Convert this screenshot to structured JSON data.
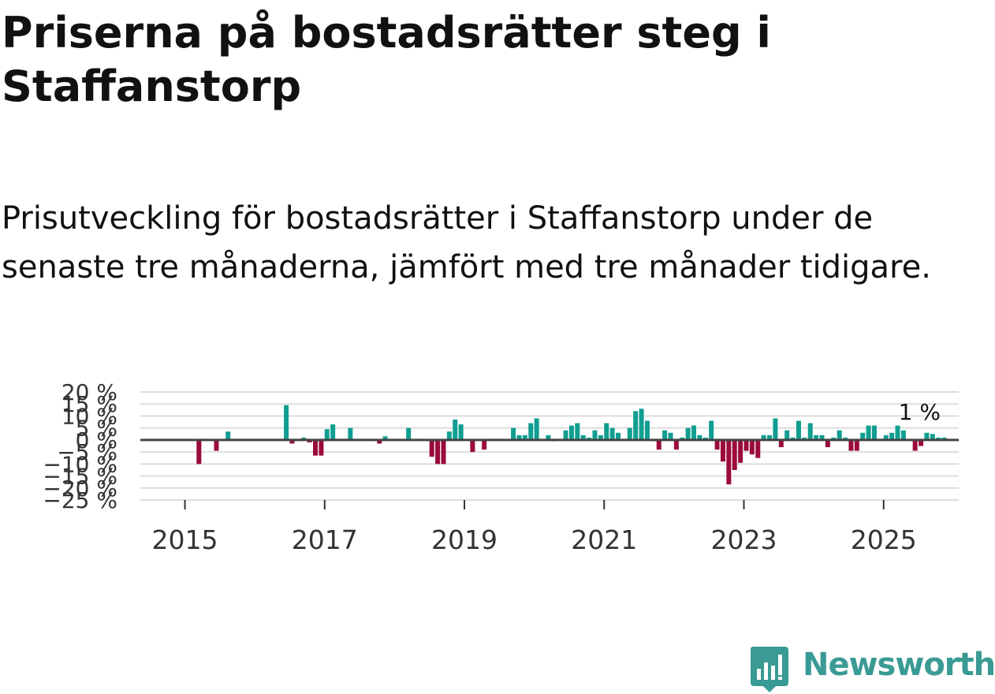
{
  "title": "Priserna på bostadsrätter steg i Staffanstorp",
  "subtitle": "Prisutveckling för bostadsrätter i Staffanstorp under de senaste tre månaderna, jämfört med tre månader tidigare.",
  "brand": {
    "name": "Newsworthy",
    "color": "#3a9a94"
  },
  "colors": {
    "positive": "#0f9e91",
    "negative": "#9b0a3c",
    "zero_line": "#444444",
    "grid": "#dddddd"
  },
  "chart_data": {
    "type": "bar",
    "title": "",
    "xlabel": "",
    "ylabel": "",
    "ylim": [
      -25,
      20
    ],
    "yticks": [
      20,
      15,
      10,
      5,
      0,
      -5,
      -10,
      -15,
      -20,
      -25
    ],
    "ytick_labels": [
      "20 %",
      "15 %",
      "10 %",
      "5 %",
      "0 %",
      "−5 %",
      "−10 %",
      "−15 %",
      "−20 %",
      "−25 %"
    ],
    "xticks": [
      "2015",
      "2017",
      "2019",
      "2021",
      "2023",
      "2025"
    ],
    "x_start": "2014-09",
    "end_label": "1 %",
    "series": [
      {
        "name": "Prisutveckling",
        "x": [
          "2015-03",
          "2015-06",
          "2015-08",
          "2016-06",
          "2016-07",
          "2016-09",
          "2016-10",
          "2016-11",
          "2016-12",
          "2017-01",
          "2017-02",
          "2017-05",
          "2017-10",
          "2017-11",
          "2018-03",
          "2018-07",
          "2018-08",
          "2018-09",
          "2018-10",
          "2018-11",
          "2018-12",
          "2019-02",
          "2019-04",
          "2019-09",
          "2019-10",
          "2019-11",
          "2019-12",
          "2020-01",
          "2020-03",
          "2020-04",
          "2020-06",
          "2020-07",
          "2020-08",
          "2020-09",
          "2020-10",
          "2020-11",
          "2020-12",
          "2021-01",
          "2021-02",
          "2021-03",
          "2021-05",
          "2021-06",
          "2021-07",
          "2021-08",
          "2021-09",
          "2021-10",
          "2021-11",
          "2021-12",
          "2022-01",
          "2022-02",
          "2022-03",
          "2022-04",
          "2022-05",
          "2022-06",
          "2022-07",
          "2022-08",
          "2022-09",
          "2022-10",
          "2022-11",
          "2022-12",
          "2023-01",
          "2023-02",
          "2023-03",
          "2023-04",
          "2023-05",
          "2023-06",
          "2023-07",
          "2023-08",
          "2023-09",
          "2023-10",
          "2023-11",
          "2023-12",
          "2024-01",
          "2024-02",
          "2024-03",
          "2024-04",
          "2024-05",
          "2024-06",
          "2024-07",
          "2024-08",
          "2024-09",
          "2024-10",
          "2024-11",
          "2024-12",
          "2025-01",
          "2025-02",
          "2025-03",
          "2025-04",
          "2025-06",
          "2025-07",
          "2025-08",
          "2025-09",
          "2025-10",
          "2025-11"
        ],
        "values": [
          -10,
          -4.5,
          3.5,
          14.5,
          -1.5,
          1,
          -1,
          -6.5,
          -6.5,
          4.5,
          6.5,
          5,
          -1.5,
          1.5,
          5,
          -7,
          -10,
          -10,
          3.5,
          8.5,
          6.5,
          -5,
          -4,
          5,
          2,
          2,
          7,
          9,
          2,
          -0.5,
          4,
          6,
          7,
          2,
          1,
          4,
          2,
          7,
          5,
          3,
          5,
          12,
          13,
          8,
          -0.5,
          -4,
          4,
          3,
          -4,
          1,
          5,
          6,
          2,
          1,
          8,
          -4,
          -9,
          -18.5,
          -12.5,
          -9.5,
          -4.5,
          -6,
          -7.5,
          2,
          2,
          9,
          -3,
          4,
          1,
          8,
          1,
          7,
          2,
          2,
          -3,
          1,
          4,
          1,
          -4.5,
          -4.5,
          3,
          6,
          6,
          0.5,
          2,
          3,
          6,
          4,
          -4.5,
          -2.5,
          3,
          2.5,
          1,
          1
        ]
      }
    ]
  }
}
